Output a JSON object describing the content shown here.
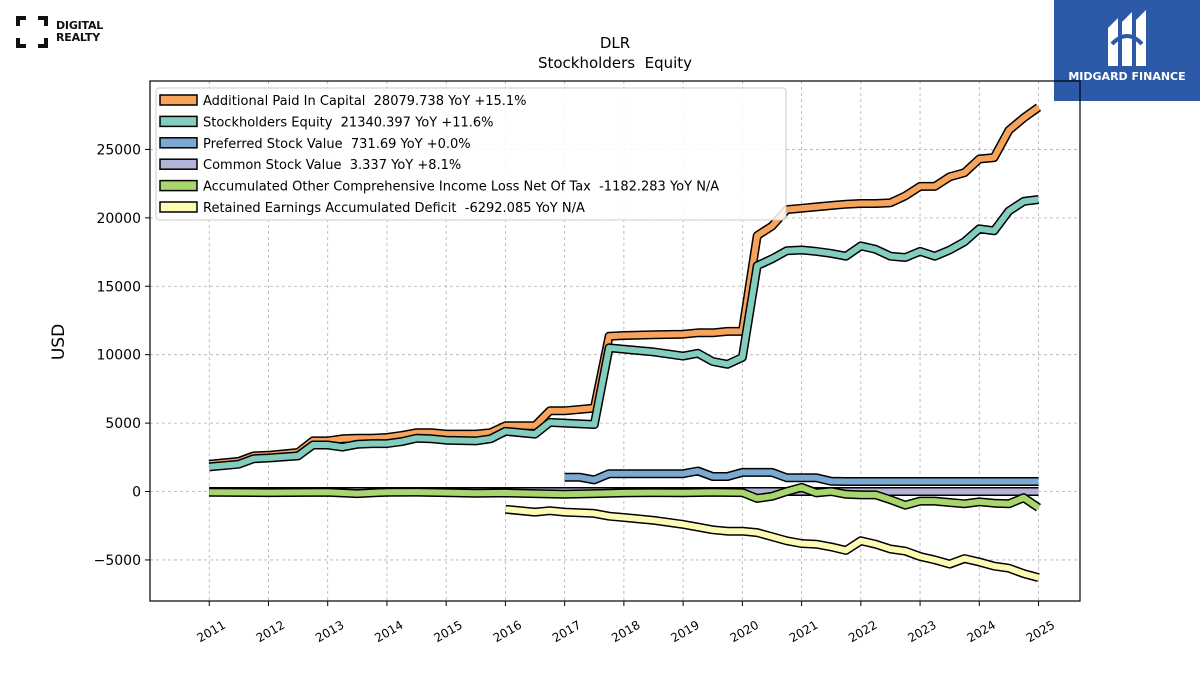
{
  "brand": {
    "line1": "DIGITAL",
    "line2": "REALTY"
  },
  "badge": {
    "name": "MIDGARD FINANCE",
    "color": "#2c5aa8"
  },
  "chart_data": {
    "type": "line",
    "title": "DLR",
    "subtitle": "Stockholders  Equity",
    "ylabel": "USD",
    "xlabel": "",
    "ylim": [
      -8000,
      30000
    ],
    "xlim": [
      2010.0,
      2025.7
    ],
    "grid": true,
    "legend_position": "top-left",
    "x_ticks": [
      2011,
      2012,
      2013,
      2014,
      2015,
      2016,
      2017,
      2018,
      2019,
      2020,
      2021,
      2022,
      2023,
      2024,
      2025
    ],
    "y_ticks": [
      -5000,
      0,
      5000,
      10000,
      15000,
      20000,
      25000
    ],
    "y_tick_labels": [
      "−5000",
      "0",
      "5000",
      "10000",
      "15000",
      "20000",
      "25000"
    ],
    "series": [
      {
        "name": "Additional Paid In Capital",
        "legend": "Additional Paid In Capital  28079.738 YoY +15.1%",
        "color": "#f8a35c",
        "x": [
          2011.0,
          2011.5,
          2011.75,
          2012.0,
          2012.5,
          2012.75,
          2013.0,
          2013.25,
          2013.5,
          2013.75,
          2014.0,
          2014.25,
          2014.5,
          2014.75,
          2015.0,
          2015.5,
          2015.75,
          2016.0,
          2016.5,
          2016.75,
          2017.0,
          2017.5,
          2017.75,
          2018.0,
          2018.5,
          2019.0,
          2019.25,
          2019.5,
          2019.75,
          2020.0,
          2020.25,
          2020.5,
          2020.75,
          2021.0,
          2021.25,
          2021.5,
          2021.75,
          2022.0,
          2022.25,
          2022.5,
          2022.75,
          2023.0,
          2023.25,
          2023.5,
          2023.75,
          2024.0,
          2024.25,
          2024.5,
          2024.75,
          2025.0
        ],
        "y": [
          2000,
          2200,
          2600,
          2650,
          2850,
          3700,
          3700,
          3850,
          3900,
          3900,
          3950,
          4100,
          4300,
          4300,
          4200,
          4200,
          4300,
          4800,
          4800,
          5900,
          5900,
          6100,
          11350,
          11400,
          11450,
          11500,
          11600,
          11600,
          11700,
          11700,
          18700,
          19400,
          20600,
          20700,
          20800,
          20900,
          21000,
          21050,
          21050,
          21100,
          21600,
          22300,
          22300,
          23000,
          23300,
          24300,
          24400,
          26400,
          27300,
          28080
        ]
      },
      {
        "name": "Stockholders Equity",
        "legend": "Stockholders Equity  21340.397 YoY +11.6%",
        "color": "#83cdbf",
        "x": [
          2011.0,
          2011.5,
          2011.75,
          2012.0,
          2012.5,
          2012.75,
          2013.0,
          2013.25,
          2013.5,
          2013.75,
          2014.0,
          2014.25,
          2014.5,
          2014.75,
          2015.0,
          2015.5,
          2015.75,
          2016.0,
          2016.5,
          2016.75,
          2017.0,
          2017.5,
          2017.75,
          2018.0,
          2018.5,
          2019.0,
          2019.25,
          2019.5,
          2019.75,
          2020.0,
          2020.25,
          2020.5,
          2020.75,
          2021.0,
          2021.25,
          2021.5,
          2021.75,
          2022.0,
          2022.25,
          2022.5,
          2022.75,
          2023.0,
          2023.25,
          2023.5,
          2023.75,
          2024.0,
          2024.25,
          2024.5,
          2024.75,
          2025.0
        ],
        "y": [
          1800,
          2000,
          2400,
          2450,
          2600,
          3400,
          3400,
          3250,
          3450,
          3500,
          3500,
          3650,
          3900,
          3850,
          3750,
          3700,
          3850,
          4400,
          4200,
          5050,
          5000,
          4900,
          10500,
          10400,
          10200,
          9900,
          10100,
          9500,
          9300,
          9800,
          16500,
          17000,
          17600,
          17650,
          17550,
          17400,
          17200,
          17950,
          17700,
          17200,
          17100,
          17550,
          17200,
          17650,
          18250,
          19200,
          19050,
          20500,
          21200,
          21340
        ]
      },
      {
        "name": "Preferred Stock Value",
        "legend": "Preferred Stock Value  731.69 YoY +0.0%",
        "color": "#7ba9d1",
        "x": [
          2017.0,
          2017.25,
          2017.5,
          2017.75,
          2018.0,
          2018.5,
          2019.0,
          2019.25,
          2019.5,
          2019.75,
          2020.0,
          2020.25,
          2020.5,
          2020.75,
          2021.0,
          2021.25,
          2021.5,
          2021.75,
          2022.0,
          2022.5,
          2023.0,
          2023.5,
          2024.0,
          2024.5,
          2025.0
        ],
        "y": [
          1050,
          1050,
          850,
          1300,
          1300,
          1300,
          1300,
          1500,
          1100,
          1100,
          1400,
          1400,
          1400,
          1000,
          1000,
          1000,
          750,
          732,
          732,
          732,
          732,
          732,
          732,
          732,
          732
        ]
      },
      {
        "name": "Common Stock Value",
        "legend": "Common Stock Value  3.337 YoY +8.1%",
        "color": "#b2b3d6",
        "x": [
          2011.0,
          2013.0,
          2015.0,
          2017.0,
          2019.0,
          2020.0,
          2021.0,
          2022.0,
          2023.0,
          2024.0,
          2025.0
        ],
        "y": [
          3,
          3,
          3,
          3,
          3,
          3,
          3,
          3,
          3,
          3,
          3.3
        ]
      },
      {
        "name": "Accumulated Other Comprehensive Income Loss Net Of Tax",
        "legend": "Accumulated Other Comprehensive Income Loss Net Of Tax  -1182.283 YoY N/A",
        "color": "#a8d66c",
        "x": [
          2011.0,
          2012.0,
          2013.0,
          2013.5,
          2014.0,
          2014.5,
          2015.0,
          2015.5,
          2016.0,
          2016.5,
          2017.0,
          2017.5,
          2018.0,
          2018.5,
          2019.0,
          2019.5,
          2020.0,
          2020.25,
          2020.5,
          2020.75,
          2021.0,
          2021.25,
          2021.5,
          2021.75,
          2022.0,
          2022.25,
          2022.5,
          2022.75,
          2023.0,
          2023.25,
          2023.5,
          2023.75,
          2024.0,
          2024.25,
          2024.5,
          2024.75,
          2025.0
        ],
        "y": [
          -50,
          -80,
          -60,
          -150,
          -50,
          -40,
          -80,
          -120,
          -100,
          -150,
          -200,
          -150,
          -100,
          -80,
          -90,
          -50,
          -80,
          -500,
          -350,
          0,
          300,
          -100,
          0,
          -200,
          -250,
          -250,
          -600,
          -1000,
          -700,
          -700,
          -800,
          -900,
          -750,
          -850,
          -900,
          -450,
          -1180
        ]
      },
      {
        "name": "Retained Earnings Accumulated Deficit",
        "legend": "Retained Earnings Accumulated Deficit  -6292.085 YoY N/A",
        "color": "#fdfbb3",
        "x": [
          2016.0,
          2016.5,
          2016.75,
          2017.0,
          2017.5,
          2017.75,
          2018.0,
          2018.5,
          2019.0,
          2019.25,
          2019.5,
          2019.75,
          2020.0,
          2020.25,
          2020.5,
          2020.75,
          2021.0,
          2021.25,
          2021.5,
          2021.75,
          2022.0,
          2022.25,
          2022.5,
          2022.75,
          2023.0,
          2023.25,
          2023.5,
          2023.75,
          2024.0,
          2024.25,
          2024.5,
          2024.75,
          2025.0
        ],
        "y": [
          -1300,
          -1500,
          -1400,
          -1500,
          -1600,
          -1800,
          -1900,
          -2100,
          -2400,
          -2600,
          -2800,
          -2900,
          -2900,
          -3000,
          -3300,
          -3600,
          -3800,
          -3850,
          -4050,
          -4300,
          -3600,
          -3850,
          -4200,
          -4350,
          -4750,
          -5000,
          -5300,
          -4900,
          -5150,
          -5450,
          -5600,
          -6000,
          -6290
        ]
      }
    ]
  }
}
